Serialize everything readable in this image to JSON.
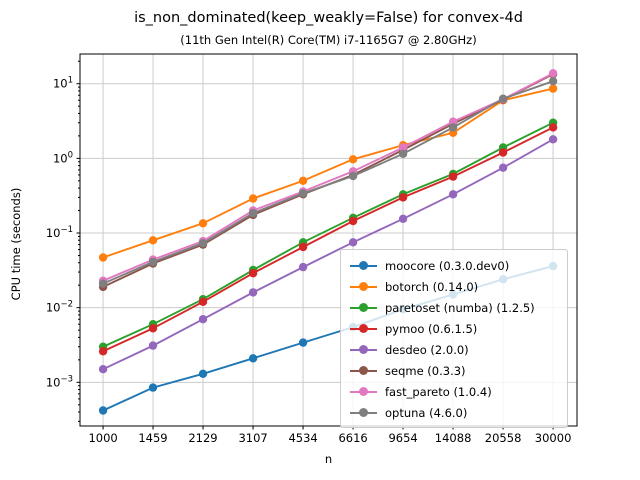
{
  "figure": {
    "title": "is_non_dominated(keep_weakly=False) for convex-4d",
    "subtitle": "(11th Gen Intel(R) Core(TM) i7-1165G7 @ 2.80GHz)"
  },
  "chart_data": {
    "type": "line",
    "title": "is_non_dominated(keep_weakly=False) for convex-4d",
    "subtitle": "(11th Gen Intel(R) Core(TM) i7-1165G7 @ 2.80GHz)",
    "xlabel": "n",
    "ylabel": "CPU time (seconds)",
    "x_scale": "log",
    "y_scale": "log",
    "grid": true,
    "legend_position": "lower-right-inside",
    "xlim": [
      840,
      35950
    ],
    "ylim": [
      0.00026,
      25
    ],
    "x": [
      1000,
      1459,
      2129,
      3107,
      4534,
      6616,
      9654,
      14088,
      20558,
      30000
    ],
    "x_tick_labels": [
      "1000",
      "1459",
      "2129",
      "3107",
      "4534",
      "6616",
      "9654",
      "14088",
      "20558",
      "30000"
    ],
    "y_tick_exponents": [
      1,
      0,
      -1,
      -2,
      -3
    ],
    "colors": {
      "grid": "#cccccc",
      "axis": "#000000",
      "background": "#ffffff"
    },
    "series": [
      {
        "name": "moocore (0.3.0.dev0)",
        "color": "#1f77b4",
        "values": [
          0.00042,
          0.00085,
          0.0013,
          0.0021,
          0.0034,
          0.0055,
          0.0095,
          0.015,
          0.024,
          0.036
        ]
      },
      {
        "name": "botorch (0.14.0)",
        "color": "#ff7f0e",
        "values": [
          0.047,
          0.08,
          0.135,
          0.29,
          0.5,
          0.97,
          1.5,
          2.2,
          6.0,
          8.6
        ]
      },
      {
        "name": "paretoset (numba) (1.2.5)",
        "color": "#2ca02c",
        "values": [
          0.003,
          0.006,
          0.013,
          0.032,
          0.075,
          0.16,
          0.33,
          0.62,
          1.4,
          3.0
        ]
      },
      {
        "name": "pymoo (0.6.1.5)",
        "color": "#d62728",
        "values": [
          0.0026,
          0.0053,
          0.012,
          0.029,
          0.065,
          0.145,
          0.3,
          0.57,
          1.2,
          2.6
        ]
      },
      {
        "name": "desdeo (2.0.0)",
        "color": "#9467bd",
        "values": [
          0.0015,
          0.0031,
          0.007,
          0.016,
          0.035,
          0.075,
          0.155,
          0.33,
          0.75,
          1.8
        ]
      },
      {
        "name": "seqme (0.3.3)",
        "color": "#8c564b",
        "values": [
          0.019,
          0.039,
          0.07,
          0.175,
          0.33,
          0.6,
          1.3,
          2.9,
          6.1,
          13.4
        ]
      },
      {
        "name": "fast_pareto (1.0.4)",
        "color": "#e377c2",
        "values": [
          0.023,
          0.044,
          0.078,
          0.2,
          0.36,
          0.67,
          1.4,
          3.1,
          6.2,
          13.8
        ]
      },
      {
        "name": "optuna (4.6.0)",
        "color": "#7f7f7f",
        "values": [
          0.021,
          0.041,
          0.073,
          0.185,
          0.34,
          0.58,
          1.15,
          2.6,
          6.3,
          10.8
        ]
      }
    ]
  }
}
